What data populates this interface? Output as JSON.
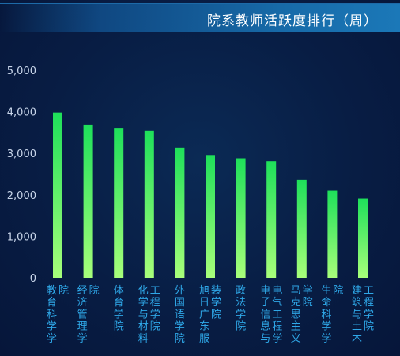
{
  "title": "院系教师活跃度排行（周）",
  "colors": {
    "bar_top": "#1ee05a",
    "bar_bottom": "#a8ff7a",
    "axis_text": "#c9d6ea",
    "category_text": "#2fa8e8",
    "grid": "#1b3a63"
  },
  "chart_data": {
    "type": "bar",
    "title": "院系教师活跃度排行（周）",
    "xlabel": "",
    "ylabel": "",
    "ylim": [
      0,
      5000
    ],
    "y_ticks": [
      "0",
      "1,000",
      "2,000",
      "3,000",
      "4,000",
      "5,000"
    ],
    "grid": false,
    "categories": [
      [
        "院",
        "教育科学学"
      ],
      [
        "院",
        "经济管理学"
      ],
      [
        "体育学院"
      ],
      [
        "工程学院",
        "化学与材料"
      ],
      [
        "外国语学院"
      ],
      [
        "装学院",
        "旭日广东服"
      ],
      [
        "政法学院"
      ],
      [
        "电气工程学",
        "电子信息与"
      ],
      [
        "学院",
        "马克思主义"
      ],
      [
        "院",
        "生命科学学"
      ],
      [
        "工程学院",
        "建筑与土木"
      ]
    ],
    "values": [
      3980,
      3690,
      3610,
      3540,
      3140,
      2960,
      2880,
      2810,
      2360,
      2100,
      1910
    ]
  }
}
